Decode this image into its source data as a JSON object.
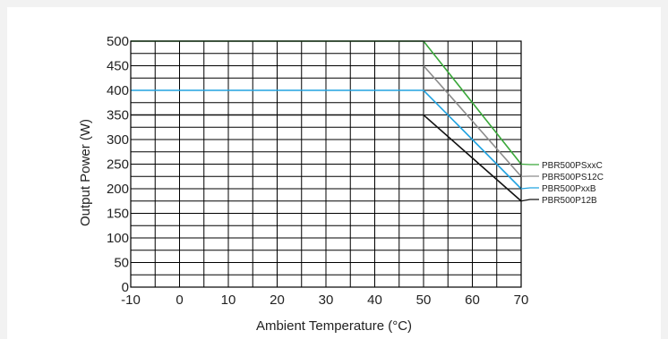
{
  "chart_data": {
    "type": "line",
    "title": "",
    "xlabel": "Ambient Temperature (°C)",
    "ylabel": "Output Power (W)",
    "xlim": [
      -10,
      70
    ],
    "ylim": [
      0,
      500
    ],
    "x_ticks": [
      -10,
      0,
      10,
      20,
      30,
      40,
      50,
      60,
      70
    ],
    "y_ticks": [
      0,
      50,
      100,
      150,
      200,
      250,
      300,
      350,
      400,
      450,
      500
    ],
    "x_minor_step": 5,
    "y_minor_step": 25,
    "grid": true,
    "legend_placement": "right",
    "series": [
      {
        "name": "PBR500PSxxC",
        "color": "#3aa83a",
        "x": [
          -10,
          50,
          70
        ],
        "y": [
          500,
          500,
          250
        ]
      },
      {
        "name": "PBR500PS12C",
        "color": "#8c8c8c",
        "x": [
          50,
          70
        ],
        "y": [
          450,
          225
        ]
      },
      {
        "name": "PBR500PxxB",
        "color": "#22a3e0",
        "x": [
          -10,
          50,
          70
        ],
        "y": [
          400,
          400,
          200
        ]
      },
      {
        "name": "PBR500P12B",
        "color": "#111111",
        "x": [
          -10,
          50,
          70
        ],
        "y": [
          350,
          350,
          175
        ]
      }
    ]
  }
}
